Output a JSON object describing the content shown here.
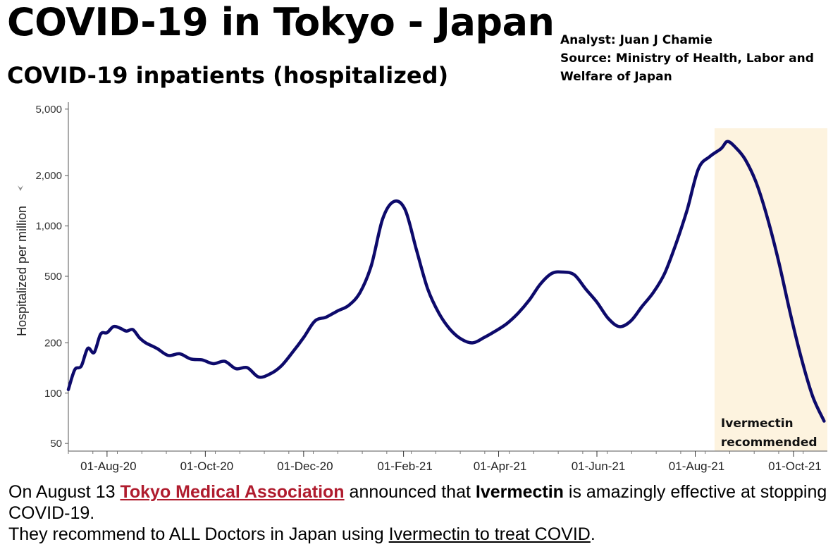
{
  "header": {
    "title": "COVID-19 in Tokyo - Japan",
    "subtitle": "COVID-19 inpatients (hospitalized)",
    "analyst": "Analyst: Juan J Chamie",
    "source_line1": "Source: Ministry of Health, Labor and",
    "source_line2": "Welfare of Japan"
  },
  "chart_data": {
    "type": "line",
    "scale": "log",
    "title": "COVID-19 inpatients (hospitalized)",
    "ylabel": "Hospitalized per million",
    "xlabel": "",
    "ylim": [
      45,
      5500
    ],
    "xlim": [
      "2020-07-08",
      "2021-10-22"
    ],
    "y_ticks": [
      {
        "value": 50,
        "label": "50"
      },
      {
        "value": 100,
        "label": "100"
      },
      {
        "value": 200,
        "label": "200"
      },
      {
        "value": 500,
        "label": "500"
      },
      {
        "value": 1000,
        "label": "1,000"
      },
      {
        "value": 2000,
        "label": "2,000"
      },
      {
        "value": 5000,
        "label": "5,000"
      }
    ],
    "x_ticks": [
      {
        "date": "2020-08-01",
        "label": "01-Aug-20"
      },
      {
        "date": "2020-10-01",
        "label": "01-Oct-20"
      },
      {
        "date": "2020-12-01",
        "label": "01-Dec-20"
      },
      {
        "date": "2021-02-01",
        "label": "01-Feb-21"
      },
      {
        "date": "2021-04-01",
        "label": "01-Apr-21"
      },
      {
        "date": "2021-06-01",
        "label": "01-Jun-21"
      },
      {
        "date": "2021-08-01",
        "label": "01-Aug-21"
      },
      {
        "date": "2021-10-01",
        "label": "01-Oct-21"
      }
    ],
    "series": [
      {
        "name": "Hospitalized per million",
        "color": "#0d0a6b",
        "points": [
          [
            "2020-07-08",
            105
          ],
          [
            "2020-07-12",
            138
          ],
          [
            "2020-07-16",
            145
          ],
          [
            "2020-07-20",
            185
          ],
          [
            "2020-07-24",
            175
          ],
          [
            "2020-07-28",
            225
          ],
          [
            "2020-08-01",
            230
          ],
          [
            "2020-08-05",
            250
          ],
          [
            "2020-08-09",
            245
          ],
          [
            "2020-08-13",
            235
          ],
          [
            "2020-08-17",
            240
          ],
          [
            "2020-08-21",
            215
          ],
          [
            "2020-08-25",
            200
          ],
          [
            "2020-09-01",
            185
          ],
          [
            "2020-09-08",
            168
          ],
          [
            "2020-09-15",
            172
          ],
          [
            "2020-09-22",
            160
          ],
          [
            "2020-09-29",
            158
          ],
          [
            "2020-10-06",
            150
          ],
          [
            "2020-10-13",
            155
          ],
          [
            "2020-10-20",
            140
          ],
          [
            "2020-10-27",
            142
          ],
          [
            "2020-11-03",
            125
          ],
          [
            "2020-11-10",
            130
          ],
          [
            "2020-11-17",
            145
          ],
          [
            "2020-11-24",
            175
          ],
          [
            "2020-12-01",
            215
          ],
          [
            "2020-12-08",
            270
          ],
          [
            "2020-12-15",
            285
          ],
          [
            "2020-12-22",
            310
          ],
          [
            "2020-12-29",
            335
          ],
          [
            "2021-01-05",
            400
          ],
          [
            "2021-01-12",
            580
          ],
          [
            "2021-01-19",
            1100
          ],
          [
            "2021-01-26",
            1400
          ],
          [
            "2021-02-02",
            1250
          ],
          [
            "2021-02-09",
            720
          ],
          [
            "2021-02-16",
            420
          ],
          [
            "2021-02-23",
            300
          ],
          [
            "2021-03-02",
            240
          ],
          [
            "2021-03-09",
            210
          ],
          [
            "2021-03-16",
            200
          ],
          [
            "2021-03-23",
            215
          ],
          [
            "2021-03-30",
            235
          ],
          [
            "2021-04-06",
            260
          ],
          [
            "2021-04-13",
            300
          ],
          [
            "2021-04-20",
            360
          ],
          [
            "2021-04-27",
            450
          ],
          [
            "2021-05-04",
            520
          ],
          [
            "2021-05-11",
            530
          ],
          [
            "2021-05-18",
            510
          ],
          [
            "2021-05-25",
            420
          ],
          [
            "2021-06-01",
            350
          ],
          [
            "2021-06-08",
            280
          ],
          [
            "2021-06-15",
            250
          ],
          [
            "2021-06-22",
            270
          ],
          [
            "2021-06-29",
            330
          ],
          [
            "2021-07-06",
            400
          ],
          [
            "2021-07-13",
            520
          ],
          [
            "2021-07-20",
            780
          ],
          [
            "2021-07-27",
            1250
          ],
          [
            "2021-08-03",
            2200
          ],
          [
            "2021-08-10",
            2600
          ],
          [
            "2021-08-17",
            2900
          ],
          [
            "2021-08-21",
            3200
          ],
          [
            "2021-08-26",
            2950
          ],
          [
            "2021-09-01",
            2500
          ],
          [
            "2021-09-08",
            1800
          ],
          [
            "2021-09-15",
            1100
          ],
          [
            "2021-09-22",
            600
          ],
          [
            "2021-09-29",
            300
          ],
          [
            "2021-10-06",
            160
          ],
          [
            "2021-10-13",
            95
          ],
          [
            "2021-10-20",
            68
          ]
        ]
      }
    ],
    "highlight": {
      "start": "2021-08-13",
      "end": "2021-10-22",
      "color": "#fdf3df",
      "label_line1": "Ivermectin",
      "label_line2": "recommended"
    }
  },
  "caption": {
    "line1_a": "On August 13 ",
    "line1_link": "Tokyo Medical Association",
    "line1_b": " announced that ",
    "line1_bold": "Ivermectin",
    "line1_c": " is amazingly effective at stopping COVID-19.",
    "line2_a": "They recommend to ALL Doctors in Japan using ",
    "line2_u": "Ivermectin to treat COVID",
    "line2_b": "."
  }
}
